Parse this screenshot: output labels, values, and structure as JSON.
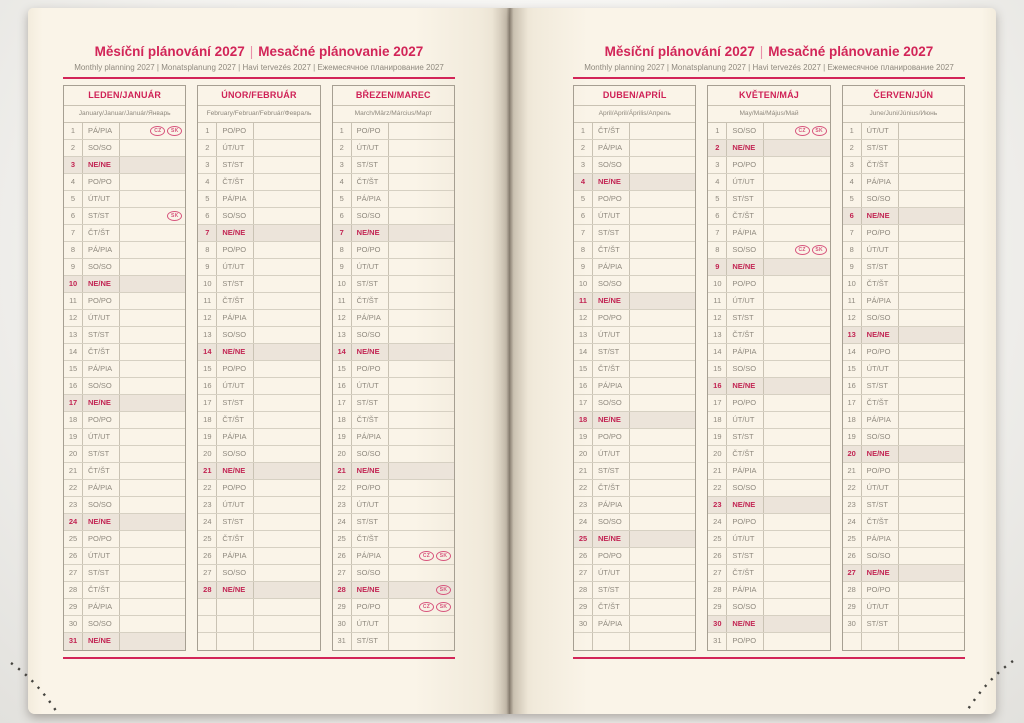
{
  "page_header": {
    "title_cz": "Měsíční plánování 2027",
    "separator": "|",
    "title_sk": "Mesačné plánovanie 2027",
    "subtitle": "Monthly planning 2027 | Monatsplanung 2027 | Havi tervezés 2027 | Ежемесячное планирование 2027"
  },
  "colors": {
    "accent_red": "#d22558",
    "sunday_red": "#c22553",
    "text_gray": "#8f897e",
    "page_cream": "#faf4e8",
    "sunday_row_bg": "#ece4da",
    "badge_pink": "#d7557d"
  },
  "rows_per_table": 31,
  "months": [
    {
      "name": "LEDEN/JANUÁR",
      "languages": "January/Januar/Január/Январь",
      "days": [
        "PÁ/PIA",
        "SO/SO",
        "NE/NE",
        "PO/PO",
        "ÚT/UT",
        "ST/ST",
        "ČT/ŠT",
        "PÁ/PIA",
        "SO/SO",
        "NE/NE",
        "PO/PO",
        "ÚT/UT",
        "ST/ST",
        "ČT/ŠT",
        "PÁ/PIA",
        "SO/SO",
        "NE/NE",
        "PO/PO",
        "ÚT/UT",
        "ST/ST",
        "ČT/ŠT",
        "PÁ/PIA",
        "SO/SO",
        "NE/NE",
        "PO/PO",
        "ÚT/UT",
        "ST/ST",
        "ČT/ŠT",
        "PÁ/PIA",
        "SO/SO",
        "NE/NE"
      ],
      "badges": {
        "1": [
          "CZ",
          "SK"
        ],
        "6": [
          "SK"
        ]
      }
    },
    {
      "name": "ÚNOR/FEBRUÁR",
      "languages": "February/Februar/Február/Февраль",
      "days": [
        "PO/PO",
        "ÚT/UT",
        "ST/ST",
        "ČT/ŠT",
        "PÁ/PIA",
        "SO/SO",
        "NE/NE",
        "PO/PO",
        "ÚT/UT",
        "ST/ST",
        "ČT/ŠT",
        "PÁ/PIA",
        "SO/SO",
        "NE/NE",
        "PO/PO",
        "ÚT/UT",
        "ST/ST",
        "ČT/ŠT",
        "PÁ/PIA",
        "SO/SO",
        "NE/NE",
        "PO/PO",
        "ÚT/UT",
        "ST/ST",
        "ČT/ŠT",
        "PÁ/PIA",
        "SO/SO",
        "NE/NE"
      ],
      "badges": {}
    },
    {
      "name": "BŘEZEN/MAREC",
      "languages": "March/März/Március/Март",
      "days": [
        "PO/PO",
        "ÚT/UT",
        "ST/ST",
        "ČT/ŠT",
        "PÁ/PIA",
        "SO/SO",
        "NE/NE",
        "PO/PO",
        "ÚT/UT",
        "ST/ST",
        "ČT/ŠT",
        "PÁ/PIA",
        "SO/SO",
        "NE/NE",
        "PO/PO",
        "ÚT/UT",
        "ST/ST",
        "ČT/ŠT",
        "PÁ/PIA",
        "SO/SO",
        "NE/NE",
        "PO/PO",
        "ÚT/UT",
        "ST/ST",
        "ČT/ŠT",
        "PÁ/PIA",
        "SO/SO",
        "NE/NE",
        "PO/PO",
        "ÚT/UT",
        "ST/ST"
      ],
      "badges": {
        "26": [
          "CZ",
          "SK"
        ],
        "28": [
          "SK"
        ],
        "29": [
          "CZ",
          "SK"
        ]
      }
    },
    {
      "name": "DUBEN/APRÍL",
      "languages": "April/April/Április/Апрель",
      "days": [
        "ČT/ŠT",
        "PÁ/PIA",
        "SO/SO",
        "NE/NE",
        "PO/PO",
        "ÚT/UT",
        "ST/ST",
        "ČT/ŠT",
        "PÁ/PIA",
        "SO/SO",
        "NE/NE",
        "PO/PO",
        "ÚT/UT",
        "ST/ST",
        "ČT/ŠT",
        "PÁ/PIA",
        "SO/SO",
        "NE/NE",
        "PO/PO",
        "ÚT/UT",
        "ST/ST",
        "ČT/ŠT",
        "PÁ/PIA",
        "SO/SO",
        "NE/NE",
        "PO/PO",
        "ÚT/UT",
        "ST/ST",
        "ČT/ŠT",
        "PÁ/PIA"
      ],
      "badges": {}
    },
    {
      "name": "KVĚTEN/MÁJ",
      "languages": "May/Mai/Május/Май",
      "days": [
        "SO/SO",
        "NE/NE",
        "PO/PO",
        "ÚT/UT",
        "ST/ST",
        "ČT/ŠT",
        "PÁ/PIA",
        "SO/SO",
        "NE/NE",
        "PO/PO",
        "ÚT/UT",
        "ST/ST",
        "ČT/ŠT",
        "PÁ/PIA",
        "SO/SO",
        "NE/NE",
        "PO/PO",
        "ÚT/UT",
        "ST/ST",
        "ČT/ŠT",
        "PÁ/PIA",
        "SO/SO",
        "NE/NE",
        "PO/PO",
        "ÚT/UT",
        "ST/ST",
        "ČT/ŠT",
        "PÁ/PIA",
        "SO/SO",
        "NE/NE",
        "PO/PO"
      ],
      "badges": {
        "1": [
          "CZ",
          "SK"
        ],
        "8": [
          "CZ",
          "SK"
        ]
      }
    },
    {
      "name": "ČERVEN/JÚN",
      "languages": "June/Juni/Június/Июнь",
      "days": [
        "ÚT/UT",
        "ST/ST",
        "ČT/ŠT",
        "PÁ/PIA",
        "SO/SO",
        "NE/NE",
        "PO/PO",
        "ÚT/UT",
        "ST/ST",
        "ČT/ŠT",
        "PÁ/PIA",
        "SO/SO",
        "NE/NE",
        "PO/PO",
        "ÚT/UT",
        "ST/ST",
        "ČT/ŠT",
        "PÁ/PIA",
        "SO/SO",
        "NE/NE",
        "PO/PO",
        "ÚT/UT",
        "ST/ST",
        "ČT/ŠT",
        "PÁ/PIA",
        "SO/SO",
        "NE/NE",
        "PO/PO",
        "ÚT/UT",
        "ST/ST"
      ],
      "badges": {}
    }
  ]
}
